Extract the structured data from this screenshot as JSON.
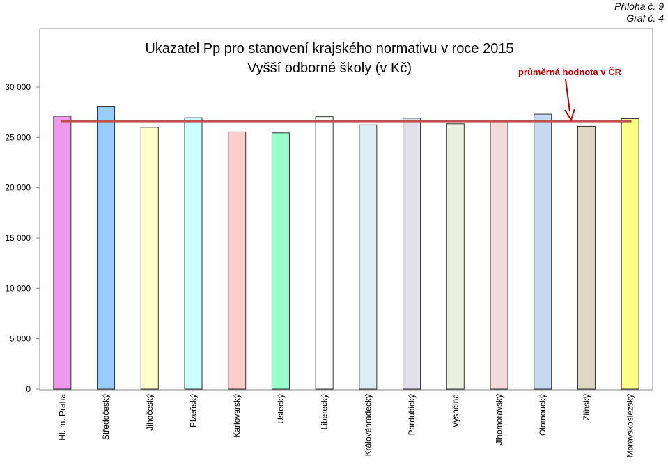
{
  "header": {
    "attachment": "Příloha č. 9",
    "graph_no": "Graf č. 4"
  },
  "chart_data": {
    "type": "bar",
    "title": "Ukazatel Pp pro stanovení krajského normativu v roce 2015",
    "subtitle": "Vyšší odborné školy (v Kč)",
    "xlabel": "",
    "ylabel": "",
    "ylim": [
      0,
      30000
    ],
    "ytick_values": [
      0,
      5000,
      10000,
      15000,
      20000,
      25000,
      30000
    ],
    "ytick_labels": [
      "0",
      "5 000",
      "10 000",
      "15 000",
      "20 000",
      "25 000",
      "30 000"
    ],
    "grid": false,
    "legend": "none",
    "categories": [
      "Hl. m. Praha",
      "Středočeský",
      "Jihočeský",
      "Plzeňský",
      "Karlovarský",
      "Ústecký",
      "Liberecký",
      "Královéhradecký",
      "Pardubický",
      "Vysočina",
      "Jihomoravský",
      "Olomoucký",
      "Zlínský",
      "Moravskoslezský"
    ],
    "values": [
      27100,
      28100,
      26000,
      26950,
      25550,
      25450,
      27050,
      26250,
      26900,
      26350,
      26650,
      27300,
      26100,
      26850
    ],
    "colors": [
      "#ee99ee",
      "#99ccff",
      "#ffffcc",
      "#ccffff",
      "#ffcccc",
      "#99ffcc",
      "#ffffff",
      "#daeef3",
      "#e4dfec",
      "#ebf1de",
      "#f2dcdb",
      "#c5d9f1",
      "#ddd9c4",
      "#ffff88"
    ],
    "average": {
      "label": "průměrná hodnota v ČR",
      "value": 26600,
      "color": "#c0504d"
    }
  }
}
